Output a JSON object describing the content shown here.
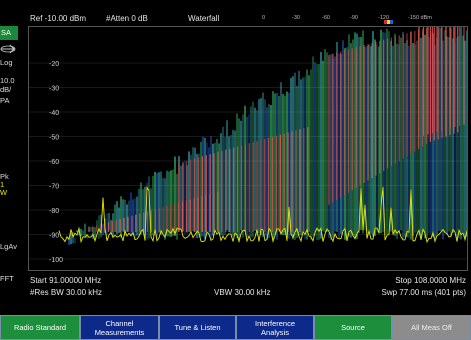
{
  "left": {
    "mode_badge": "SA",
    "scale": "Log",
    "ref_per_div": "10.0\ndB/",
    "pa": "PA",
    "trace1": "Pk",
    "trace2": "1",
    "trace3": "W",
    "avg": "LgAv",
    "fft": "FFT"
  },
  "topbar": {
    "ref": "Ref -10.00 dBm",
    "atten": "#Atten 0 dB",
    "view": "Waterfall",
    "scale_labels": [
      "0",
      "-30",
      "-60",
      "-90",
      "-120",
      "-150 dBm"
    ]
  },
  "plot": {
    "y_labels": [
      "-20",
      "-30",
      "-40",
      "-50",
      "-60",
      "-70",
      "-80",
      "-90",
      "-100"
    ],
    "colors": {
      "yellow": "#e8e800",
      "red": "#e05050",
      "green": "#40d070",
      "cyan": "#3fb8c8",
      "blue": "#2060d8",
      "grid": "#333333"
    }
  },
  "bottom": {
    "start": "Start 91.00000 MHz",
    "stop": "Stop 108.0000 MHz",
    "rbw": "#Res BW 30.00 kHz",
    "vbw": "VBW 30.00 kHz",
    "sweep": "Swp 77.00 ms (401 pts)"
  },
  "softkeys": [
    {
      "label": "Radio Standard",
      "style": "green"
    },
    {
      "label": "Channel\nMeasurements",
      "style": "blue"
    },
    {
      "label": "Tune & Listen",
      "style": "blue"
    },
    {
      "label": "Interference\nAnalysis",
      "style": "blue"
    },
    {
      "label": "Source",
      "style": "green"
    },
    {
      "label": "All Meas Off",
      "style": "gray"
    }
  ]
}
